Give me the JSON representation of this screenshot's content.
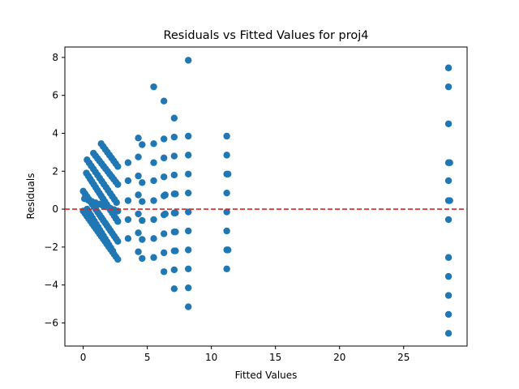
{
  "chart_data": {
    "type": "scatter",
    "title": "Residuals vs Fitted Values for proj4",
    "xlabel": "Fitted Values",
    "ylabel": "Residuals",
    "xlim": [
      -1.43,
      29.95
    ],
    "ylim": [
      -7.22,
      8.55
    ],
    "xticks": [
      0,
      5,
      10,
      15,
      20,
      25
    ],
    "yticks": [
      -6,
      -4,
      -2,
      0,
      2,
      4,
      6,
      8
    ],
    "grid": false,
    "reference_line": {
      "y": 0,
      "color": "#d62728",
      "style": "dashed"
    },
    "marker_color": "#1f77b4",
    "bands": [
      {
        "start": [
          0.0,
          0.95
        ],
        "end": [
          2.7,
          -1.7
        ],
        "n": 20
      },
      {
        "start": [
          0.25,
          1.9
        ],
        "end": [
          2.7,
          -0.65
        ],
        "n": 18
      },
      {
        "start": [
          0.3,
          0.0
        ],
        "end": [
          2.3,
          -2.2
        ],
        "n": 15
      },
      {
        "start": [
          0.3,
          2.6
        ],
        "end": [
          2.6,
          0.35
        ],
        "n": 15
      },
      {
        "start": [
          0.0,
          -0.1
        ],
        "end": [
          2.7,
          -2.65
        ],
        "n": 20
      },
      {
        "start": [
          0.8,
          2.95
        ],
        "end": [
          2.7,
          1.3
        ],
        "n": 13
      },
      {
        "start": [
          1.4,
          3.45
        ],
        "end": [
          2.7,
          2.25
        ],
        "n": 9
      },
      {
        "start": [
          0.1,
          0.55
        ],
        "end": [
          2.7,
          -0.1
        ],
        "n": 10
      }
    ],
    "points": [
      [
        3.5,
        2.45
      ],
      [
        3.5,
        1.5
      ],
      [
        3.5,
        0.45
      ],
      [
        3.5,
        -0.55
      ],
      [
        3.5,
        -1.55
      ],
      [
        4.3,
        3.75
      ],
      [
        4.3,
        2.75
      ],
      [
        4.3,
        1.75
      ],
      [
        4.3,
        0.75
      ],
      [
        4.3,
        -0.25
      ],
      [
        4.3,
        -1.25
      ],
      [
        4.3,
        -2.25
      ],
      [
        4.6,
        3.4
      ],
      [
        4.6,
        1.4
      ],
      [
        4.6,
        0.4
      ],
      [
        4.6,
        -0.6
      ],
      [
        4.6,
        -1.6
      ],
      [
        4.6,
        -2.6
      ],
      [
        5.5,
        6.45
      ],
      [
        5.5,
        3.45
      ],
      [
        5.5,
        2.45
      ],
      [
        5.5,
        1.5
      ],
      [
        5.5,
        0.45
      ],
      [
        5.5,
        -0.55
      ],
      [
        5.5,
        -1.55
      ],
      [
        5.5,
        -2.55
      ],
      [
        6.3,
        5.7
      ],
      [
        6.3,
        3.7
      ],
      [
        6.3,
        2.7
      ],
      [
        6.3,
        1.7
      ],
      [
        6.3,
        0.7
      ],
      [
        6.3,
        -0.3
      ],
      [
        6.3,
        -1.3
      ],
      [
        6.3,
        -2.3
      ],
      [
        6.3,
        -3.3
      ],
      [
        6.4,
        0.75
      ],
      [
        6.4,
        -0.25
      ],
      [
        7.1,
        4.8
      ],
      [
        7.1,
        3.8
      ],
      [
        7.1,
        2.8
      ],
      [
        7.1,
        1.8
      ],
      [
        7.1,
        0.8
      ],
      [
        7.1,
        -0.2
      ],
      [
        7.1,
        -1.2
      ],
      [
        7.1,
        -2.2
      ],
      [
        7.1,
        -3.2
      ],
      [
        7.1,
        -4.2
      ],
      [
        7.2,
        0.8
      ],
      [
        7.2,
        -0.2
      ],
      [
        7.2,
        -1.2
      ],
      [
        7.2,
        -2.2
      ],
      [
        8.2,
        7.85
      ],
      [
        8.2,
        3.85
      ],
      [
        8.2,
        2.85
      ],
      [
        8.2,
        1.85
      ],
      [
        8.2,
        0.85
      ],
      [
        8.2,
        -0.15
      ],
      [
        8.2,
        -1.15
      ],
      [
        8.2,
        -2.15
      ],
      [
        8.2,
        -3.15
      ],
      [
        8.2,
        -4.15
      ],
      [
        8.2,
        -5.15
      ],
      [
        11.2,
        3.85
      ],
      [
        11.2,
        2.85
      ],
      [
        11.2,
        1.85
      ],
      [
        11.2,
        0.85
      ],
      [
        11.2,
        -0.15
      ],
      [
        11.2,
        -1.15
      ],
      [
        11.2,
        -2.15
      ],
      [
        11.2,
        -3.15
      ],
      [
        11.3,
        1.85
      ],
      [
        11.3,
        -2.15
      ],
      [
        28.5,
        7.45
      ],
      [
        28.5,
        6.45
      ],
      [
        28.5,
        4.5
      ],
      [
        28.5,
        2.45
      ],
      [
        28.5,
        1.5
      ],
      [
        28.5,
        0.45
      ],
      [
        28.5,
        -0.55
      ],
      [
        28.5,
        -2.55
      ],
      [
        28.5,
        -3.55
      ],
      [
        28.5,
        -4.55
      ],
      [
        28.5,
        -5.55
      ],
      [
        28.5,
        -6.55
      ],
      [
        28.6,
        2.45
      ],
      [
        28.6,
        0.45
      ]
    ]
  }
}
